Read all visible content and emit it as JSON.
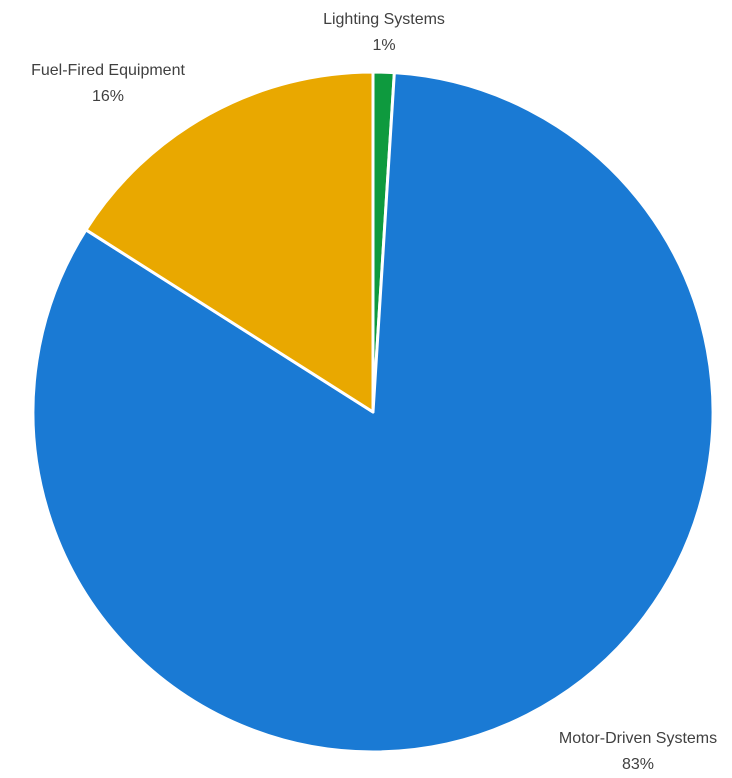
{
  "chart_data": {
    "type": "pie",
    "slices": [
      {
        "label": "Lighting Systems",
        "value": 1,
        "display": "1%",
        "color": "#0e9a3e"
      },
      {
        "label": "Motor-Driven Systems",
        "value": 83,
        "display": "83%",
        "color": "#1a7ad4"
      },
      {
        "label": "Fuel-Fired Equipment",
        "value": 16,
        "display": "16%",
        "color": "#e9a800"
      }
    ],
    "start_angle": "12 o'clock",
    "direction": "clockwise",
    "legend": "none",
    "data_labels": "outside"
  }
}
